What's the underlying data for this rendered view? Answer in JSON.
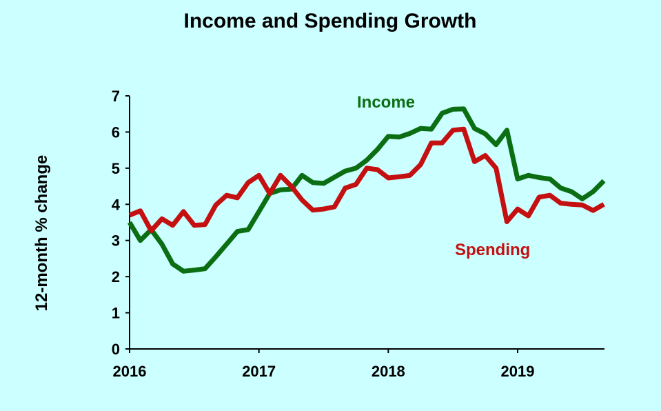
{
  "chart_data": {
    "type": "line",
    "title": "Income and Spending Growth",
    "xlabel": "",
    "ylabel": "12-month % change",
    "x_tick_labels": [
      "2016",
      "2017",
      "2018",
      "2019"
    ],
    "y_tick_labels": [
      "0",
      "1",
      "2",
      "3",
      "4",
      "5",
      "6",
      "7"
    ],
    "ylim": [
      0,
      7
    ],
    "x_start": "2016-01",
    "grid": false,
    "legend": "inline labels",
    "series": [
      {
        "name": "Income",
        "color": "#0b6e12",
        "values": [
          3.5,
          3.0,
          3.3,
          2.9,
          2.35,
          2.15,
          2.18,
          2.22,
          2.55,
          2.9,
          3.25,
          3.3,
          3.8,
          4.3,
          4.4,
          4.42,
          4.8,
          4.6,
          4.58,
          4.75,
          4.92,
          5.0,
          5.22,
          5.52,
          5.88,
          5.86,
          5.96,
          6.1,
          6.08,
          6.52,
          6.63,
          6.64,
          6.1,
          5.95,
          5.65,
          6.05,
          4.7,
          4.8,
          4.74,
          4.7,
          4.45,
          4.35,
          4.15,
          4.35,
          4.65
        ]
      },
      {
        "name": "Spending",
        "color": "#c41010",
        "values": [
          3.7,
          3.82,
          3.27,
          3.6,
          3.42,
          3.8,
          3.42,
          3.44,
          3.98,
          4.25,
          4.18,
          4.6,
          4.8,
          4.3,
          4.8,
          4.5,
          4.12,
          3.84,
          3.87,
          3.93,
          4.45,
          4.55,
          5.0,
          4.96,
          4.73,
          4.76,
          4.8,
          5.1,
          5.7,
          5.7,
          6.05,
          6.08,
          5.18,
          5.35,
          5.0,
          3.52,
          3.87,
          3.68,
          4.2,
          4.25,
          4.03,
          4.0,
          3.98,
          3.83,
          4.0
        ]
      }
    ]
  }
}
